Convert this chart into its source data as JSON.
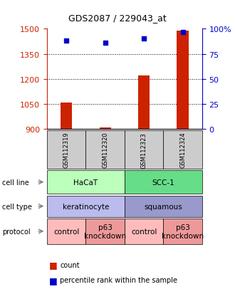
{
  "title": "GDS2087 / 229043_at",
  "samples": [
    "GSM112319",
    "GSM112320",
    "GSM112323",
    "GSM112324"
  ],
  "counts": [
    1060,
    910,
    1220,
    1490
  ],
  "percentile_ranks": [
    88,
    86,
    90,
    97
  ],
  "ylim_left": [
    900,
    1500
  ],
  "ylim_right": [
    0,
    100
  ],
  "yticks_left": [
    900,
    1050,
    1200,
    1350,
    1500
  ],
  "yticks_right": [
    0,
    25,
    50,
    75,
    100
  ],
  "ytick_labels_right": [
    "0",
    "25",
    "50",
    "75",
    "100%"
  ],
  "bar_color": "#cc2200",
  "dot_color": "#0000cc",
  "cell_line_labels": [
    "HaCaT",
    "SCC-1"
  ],
  "cell_line_colors": [
    "#bbffbb",
    "#66dd88"
  ],
  "cell_type_labels": [
    "keratinocyte",
    "squamous"
  ],
  "cell_type_colors": [
    "#bbbbee",
    "#9999cc"
  ],
  "protocol_labels": [
    "control",
    "p63\nknockdown",
    "control",
    "p63\nknockdown"
  ],
  "protocol_colors": [
    "#ffbbbb",
    "#ee9999",
    "#ffbbbb",
    "#ee9999"
  ],
  "row_labels": [
    "cell line",
    "cell type",
    "protocol"
  ],
  "left_color": "#cc2200",
  "right_color": "#0000cc",
  "sample_box_color": "#cccccc"
}
